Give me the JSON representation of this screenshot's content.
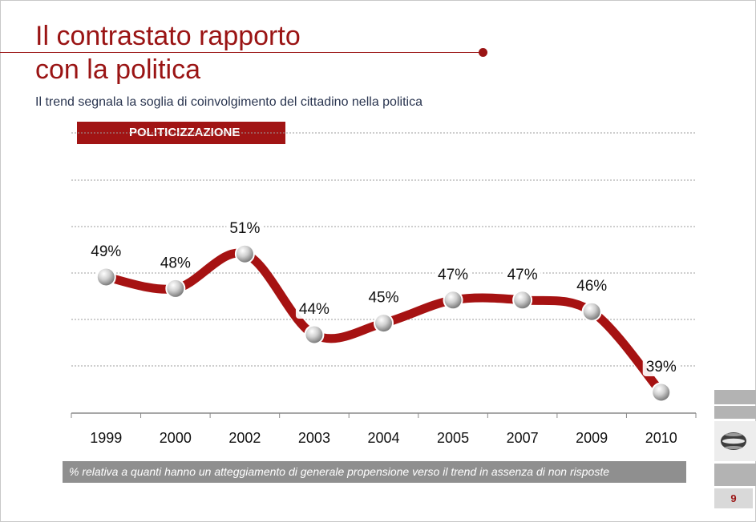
{
  "slide": {
    "title_line1": "Il contrastato rapporto",
    "title_line2": "con la politica",
    "subtitle": "Il trend segnala la soglia di coinvolgimento del cittadino nella politica",
    "badge": "POLITICIZZAZIONE",
    "footnote": "% relativa a quanti hanno un atteggiamento di generale propensione verso  il trend in assenza di non risposte",
    "page_number": "9"
  },
  "colors": {
    "accent": "#a11414",
    "line": "#a61212",
    "footnote_bg": "#8f8f8f"
  },
  "chart_data": {
    "type": "line",
    "categories": [
      "1999",
      "2000",
      "2002",
      "2003",
      "2004",
      "2005",
      "2007",
      "2009",
      "2010"
    ],
    "values": [
      49,
      48,
      51,
      44,
      45,
      47,
      47,
      46,
      39
    ],
    "data_labels": [
      "49%",
      "48%",
      "51%",
      "44%",
      "45%",
      "47%",
      "47%",
      "46%",
      "39%"
    ],
    "grid": true,
    "marker": "silver-sphere"
  }
}
